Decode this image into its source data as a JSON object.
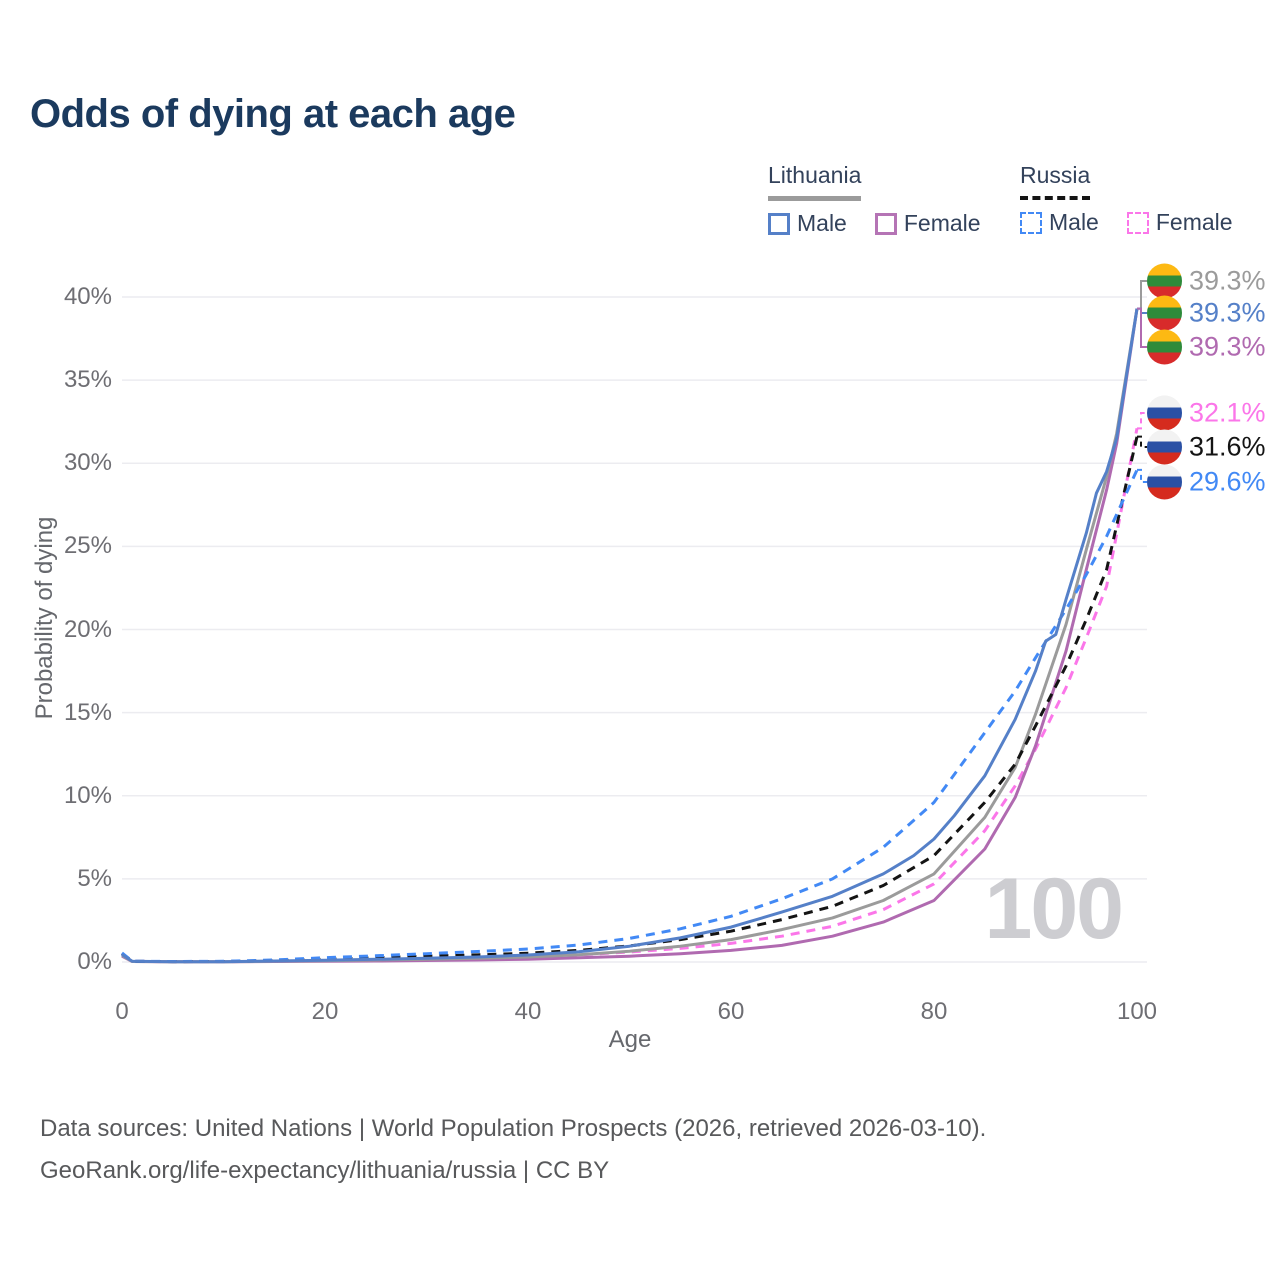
{
  "title": "Odds of dying at each age",
  "legend": {
    "groups": [
      {
        "name": "Lithuania",
        "line_style": "solid",
        "underline_color": "#9b9b9b",
        "items": [
          {
            "label": "Male",
            "color": "#5580c8",
            "dashed": false
          },
          {
            "label": "Female",
            "color": "#b574b5",
            "dashed": false
          }
        ]
      },
      {
        "name": "Russia",
        "line_style": "dashed",
        "underline_color": "#141414",
        "items": [
          {
            "label": "Male",
            "color": "#4289f5",
            "dashed": true
          },
          {
            "label": "Female",
            "color": "#fb76e9",
            "dashed": true
          }
        ]
      }
    ]
  },
  "flags": {
    "lithuania": [
      "#FDB913",
      "#2E8B3A",
      "#D82B2B"
    ],
    "russia": [
      "#F2F2F2",
      "#2A50A5",
      "#D52B1E"
    ]
  },
  "chart_data": {
    "type": "line",
    "title": "Odds of dying at each age",
    "xlabel": "Age",
    "ylabel": "Probability of dying",
    "xlim": [
      0,
      100
    ],
    "ylim_pct": [
      0,
      40
    ],
    "xticks": [
      0,
      20,
      40,
      60,
      80,
      100
    ],
    "ytick_labels": [
      "0%",
      "5%",
      "10%",
      "15%",
      "20%",
      "25%",
      "30%",
      "35%",
      "40%"
    ],
    "grid": "horizontal-only",
    "legend_position": "top-right",
    "age_watermark": "100",
    "series": [
      {
        "key": "russia_female",
        "country": "Russia",
        "sex": "Female",
        "color": "#fb76e9",
        "dashed": true,
        "flag": "russia",
        "end_label": "32.1%",
        "end_value_pct": 32.1,
        "label_row": 3,
        "points": [
          [
            0,
            0.45
          ],
          [
            1,
            0.04
          ],
          [
            5,
            0.02
          ],
          [
            10,
            0.02
          ],
          [
            15,
            0.05
          ],
          [
            20,
            0.09
          ],
          [
            25,
            0.13
          ],
          [
            30,
            0.18
          ],
          [
            35,
            0.24
          ],
          [
            40,
            0.31
          ],
          [
            45,
            0.43
          ],
          [
            50,
            0.6
          ],
          [
            55,
            0.82
          ],
          [
            60,
            1.12
          ],
          [
            65,
            1.55
          ],
          [
            70,
            2.15
          ],
          [
            75,
            3.15
          ],
          [
            80,
            4.7
          ],
          [
            85,
            7.9
          ],
          [
            88,
            10.6
          ],
          [
            90,
            12.8
          ],
          [
            93,
            16.5
          ],
          [
            95,
            19.5
          ],
          [
            97,
            22.6
          ],
          [
            100,
            32.1
          ]
        ]
      },
      {
        "key": "lithuania_female",
        "country": "Lithuania",
        "sex": "Female",
        "color": "#b06ab0",
        "dashed": false,
        "flag": "lithuania",
        "end_label": "39.3%",
        "end_value_pct": 39.3,
        "label_row": 2,
        "points": [
          [
            0,
            0.35
          ],
          [
            1,
            0.03
          ],
          [
            5,
            0.01
          ],
          [
            10,
            0.01
          ],
          [
            15,
            0.03
          ],
          [
            20,
            0.04
          ],
          [
            25,
            0.06
          ],
          [
            30,
            0.09
          ],
          [
            35,
            0.12
          ],
          [
            40,
            0.17
          ],
          [
            45,
            0.25
          ],
          [
            50,
            0.35
          ],
          [
            55,
            0.5
          ],
          [
            60,
            0.7
          ],
          [
            65,
            1.0
          ],
          [
            70,
            1.55
          ],
          [
            75,
            2.4
          ],
          [
            80,
            3.7
          ],
          [
            85,
            6.8
          ],
          [
            88,
            9.9
          ],
          [
            90,
            13.0
          ],
          [
            93,
            18.7
          ],
          [
            95,
            23.6
          ],
          [
            97,
            28.4
          ],
          [
            98,
            31.2
          ],
          [
            100,
            39.3
          ]
        ]
      },
      {
        "key": "lithuania_both",
        "country": "Lithuania",
        "sex": "Both",
        "color": "#9b9b9b",
        "dashed": false,
        "flag": "lithuania",
        "end_label": "39.3%",
        "end_value_pct": 39.3,
        "label_row": 0,
        "points": [
          [
            0,
            0.4
          ],
          [
            1,
            0.03
          ],
          [
            5,
            0.015
          ],
          [
            10,
            0.015
          ],
          [
            15,
            0.04
          ],
          [
            20,
            0.08
          ],
          [
            25,
            0.12
          ],
          [
            30,
            0.16
          ],
          [
            35,
            0.22
          ],
          [
            40,
            0.3
          ],
          [
            45,
            0.44
          ],
          [
            50,
            0.65
          ],
          [
            55,
            0.95
          ],
          [
            60,
            1.35
          ],
          [
            65,
            1.95
          ],
          [
            70,
            2.65
          ],
          [
            75,
            3.7
          ],
          [
            80,
            5.3
          ],
          [
            85,
            8.7
          ],
          [
            88,
            11.7
          ],
          [
            90,
            14.9
          ],
          [
            93,
            20.3
          ],
          [
            95,
            24.8
          ],
          [
            97,
            29.2
          ],
          [
            98,
            31.8
          ],
          [
            100,
            39.3
          ]
        ]
      },
      {
        "key": "russia_both",
        "country": "Russia",
        "sex": "Both",
        "color": "#141414",
        "dashed": true,
        "flag": "russia",
        "end_label": "31.6%",
        "end_value_pct": 31.6,
        "label_row": 4,
        "points": [
          [
            0,
            0.5
          ],
          [
            1,
            0.045
          ],
          [
            5,
            0.025
          ],
          [
            10,
            0.03
          ],
          [
            15,
            0.08
          ],
          [
            20,
            0.16
          ],
          [
            25,
            0.25
          ],
          [
            30,
            0.35
          ],
          [
            35,
            0.43
          ],
          [
            40,
            0.53
          ],
          [
            45,
            0.7
          ],
          [
            50,
            0.97
          ],
          [
            55,
            1.35
          ],
          [
            60,
            1.85
          ],
          [
            65,
            2.55
          ],
          [
            70,
            3.35
          ],
          [
            75,
            4.6
          ],
          [
            80,
            6.4
          ],
          [
            85,
            9.6
          ],
          [
            88,
            11.9
          ],
          [
            90,
            14.2
          ],
          [
            93,
            17.8
          ],
          [
            95,
            20.6
          ],
          [
            97,
            23.6
          ],
          [
            100,
            31.6
          ]
        ]
      },
      {
        "key": "russia_male",
        "country": "Russia",
        "sex": "Male",
        "color": "#4289f5",
        "dashed": true,
        "flag": "russia",
        "end_label": "29.6%",
        "end_value_pct": 29.6,
        "label_row": 5,
        "points": [
          [
            0,
            0.55
          ],
          [
            1,
            0.05
          ],
          [
            5,
            0.03
          ],
          [
            10,
            0.04
          ],
          [
            15,
            0.12
          ],
          [
            20,
            0.26
          ],
          [
            25,
            0.37
          ],
          [
            30,
            0.5
          ],
          [
            35,
            0.63
          ],
          [
            40,
            0.78
          ],
          [
            45,
            1.02
          ],
          [
            50,
            1.42
          ],
          [
            55,
            2.0
          ],
          [
            60,
            2.75
          ],
          [
            65,
            3.8
          ],
          [
            70,
            5.0
          ],
          [
            75,
            6.9
          ],
          [
            80,
            9.6
          ],
          [
            85,
            13.8
          ],
          [
            88,
            16.3
          ],
          [
            90,
            18.3
          ],
          [
            93,
            21.2
          ],
          [
            95,
            23.3
          ],
          [
            97,
            25.6
          ],
          [
            100,
            29.6
          ]
        ]
      },
      {
        "key": "lithuania_male",
        "country": "Lithuania",
        "sex": "Male",
        "color": "#5580c8",
        "dashed": false,
        "flag": "lithuania",
        "end_label": "39.3%",
        "end_value_pct": 39.3,
        "label_row": 1,
        "points": [
          [
            0,
            0.45
          ],
          [
            1,
            0.04
          ],
          [
            5,
            0.02
          ],
          [
            10,
            0.02
          ],
          [
            15,
            0.06
          ],
          [
            20,
            0.11
          ],
          [
            25,
            0.16
          ],
          [
            30,
            0.22
          ],
          [
            35,
            0.3
          ],
          [
            40,
            0.42
          ],
          [
            45,
            0.62
          ],
          [
            50,
            0.95
          ],
          [
            55,
            1.45
          ],
          [
            60,
            2.1
          ],
          [
            65,
            3.0
          ],
          [
            70,
            3.95
          ],
          [
            75,
            5.3
          ],
          [
            78,
            6.4
          ],
          [
            80,
            7.4
          ],
          [
            82,
            8.8
          ],
          [
            85,
            11.2
          ],
          [
            88,
            14.6
          ],
          [
            90,
            17.5
          ],
          [
            91,
            19.3
          ],
          [
            92,
            19.7
          ],
          [
            93,
            21.8
          ],
          [
            95,
            25.8
          ],
          [
            96,
            28.2
          ],
          [
            97,
            29.5
          ],
          [
            98,
            31.5
          ],
          [
            100,
            39.3
          ]
        ]
      }
    ]
  },
  "footer": {
    "line1": "Data sources: United Nations | World Population Prospects (2026, retrieved 2026-03-10).",
    "line2": "GeoRank.org/life-expectancy/lithuania/russia | CC BY"
  }
}
